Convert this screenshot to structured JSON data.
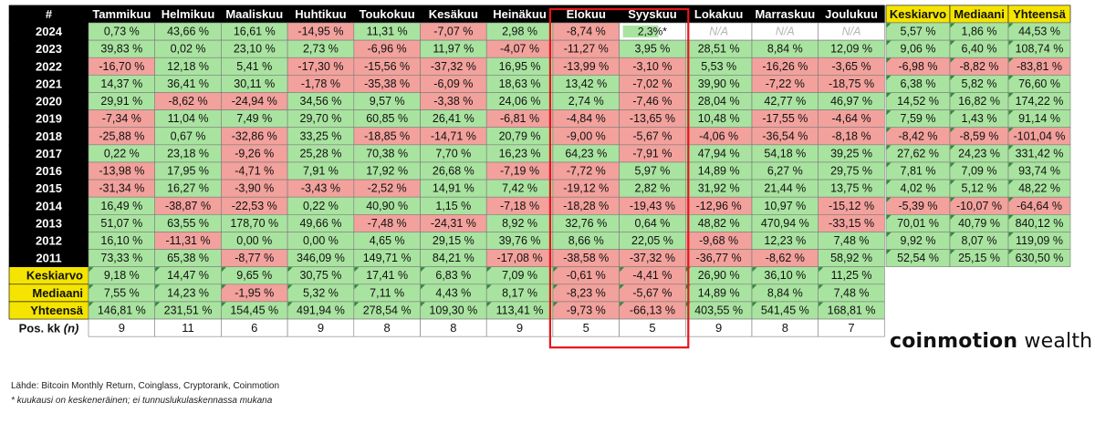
{
  "chart_data": {
    "type": "heatmap",
    "corner_label": "#",
    "months": [
      "Tammikuu",
      "Helmikuu",
      "Maaliskuu",
      "Huhtikuu",
      "Toukokuu",
      "Kesäkuu",
      "Heinäkuu",
      "Elokuu",
      "Syyskuu",
      "Lokakuu",
      "Marraskuu",
      "Joulukuu"
    ],
    "summary_columns": [
      "Keskiarvo",
      "Mediaani",
      "Yhteensä"
    ],
    "rows": [
      {
        "year": "2024",
        "values": [
          0.73,
          43.66,
          16.61,
          -14.95,
          11.31,
          -7.07,
          2.98,
          -8.74,
          2.3,
          null,
          null,
          null
        ],
        "labels": [
          "0,73 %",
          "43,66 %",
          "16,61 %",
          "-14,95 %",
          "11,31 %",
          "-7,07 %",
          "2,98 %",
          "-8,74 %",
          "2,3%*",
          "N/A",
          "N/A",
          "N/A"
        ],
        "summary": [
          5.57,
          1.86,
          44.53
        ],
        "summary_labels": [
          "5,57 %",
          "1,86 %",
          "44,53 %"
        ]
      },
      {
        "year": "2023",
        "values": [
          39.83,
          0.02,
          23.1,
          2.73,
          -6.96,
          11.97,
          -4.07,
          -11.27,
          3.95,
          28.51,
          8.84,
          12.09
        ],
        "labels": [
          "39,83 %",
          "0,02 %",
          "23,10 %",
          "2,73 %",
          "-6,96 %",
          "11,97 %",
          "-4,07 %",
          "-11,27 %",
          "3,95 %",
          "28,51 %",
          "8,84 %",
          "12,09 %"
        ],
        "summary": [
          9.06,
          6.4,
          108.74
        ],
        "summary_labels": [
          "9,06 %",
          "6,40 %",
          "108,74 %"
        ]
      },
      {
        "year": "2022",
        "values": [
          -16.7,
          12.18,
          5.41,
          -17.3,
          -15.56,
          -37.32,
          16.95,
          -13.99,
          -3.1,
          5.53,
          -16.26,
          -3.65
        ],
        "labels": [
          "-16,70 %",
          "12,18 %",
          "5,41 %",
          "-17,30 %",
          "-15,56 %",
          "-37,32 %",
          "16,95 %",
          "-13,99 %",
          "-3,10 %",
          "5,53 %",
          "-16,26 %",
          "-3,65 %"
        ],
        "summary": [
          -6.98,
          -8.82,
          -83.81
        ],
        "summary_labels": [
          "-6,98 %",
          "-8,82 %",
          "-83,81 %"
        ]
      },
      {
        "year": "2021",
        "values": [
          14.37,
          36.41,
          30.11,
          -1.78,
          -35.38,
          -6.09,
          18.63,
          13.42,
          -7.02,
          39.9,
          -7.22,
          -18.75
        ],
        "labels": [
          "14,37 %",
          "36,41 %",
          "30,11 %",
          "-1,78 %",
          "-35,38 %",
          "-6,09 %",
          "18,63 %",
          "13,42 %",
          "-7,02 %",
          "39,90 %",
          "-7,22 %",
          "-18,75 %"
        ],
        "summary": [
          6.38,
          5.82,
          76.6
        ],
        "summary_labels": [
          "6,38 %",
          "5,82 %",
          "76,60 %"
        ]
      },
      {
        "year": "2020",
        "values": [
          29.91,
          -8.62,
          -24.94,
          34.56,
          9.57,
          -3.38,
          24.06,
          2.74,
          -7.46,
          28.04,
          42.77,
          46.97
        ],
        "labels": [
          "29,91 %",
          "-8,62 %",
          "-24,94 %",
          "34,56 %",
          "9,57 %",
          "-3,38 %",
          "24,06 %",
          "2,74 %",
          "-7,46 %",
          "28,04 %",
          "42,77 %",
          "46,97 %"
        ],
        "summary": [
          14.52,
          16.82,
          174.22
        ],
        "summary_labels": [
          "14,52 %",
          "16,82 %",
          "174,22 %"
        ]
      },
      {
        "year": "2019",
        "values": [
          -7.34,
          11.04,
          7.49,
          29.7,
          60.85,
          26.41,
          -6.81,
          -4.84,
          -13.65,
          10.48,
          -17.55,
          -4.64
        ],
        "labels": [
          "-7,34 %",
          "11,04 %",
          "7,49 %",
          "29,70 %",
          "60,85 %",
          "26,41 %",
          "-6,81 %",
          "-4,84 %",
          "-13,65 %",
          "10,48 %",
          "-17,55 %",
          "-4,64 %"
        ],
        "summary": [
          7.59,
          1.43,
          91.14
        ],
        "summary_labels": [
          "7,59 %",
          "1,43 %",
          "91,14 %"
        ]
      },
      {
        "year": "2018",
        "values": [
          -25.88,
          0.67,
          -32.86,
          33.25,
          -18.85,
          -14.71,
          20.79,
          -9.0,
          -5.67,
          -4.06,
          -36.54,
          -8.18
        ],
        "labels": [
          "-25,88 %",
          "0,67 %",
          "-32,86 %",
          "33,25 %",
          "-18,85 %",
          "-14,71 %",
          "20,79 %",
          "-9,00 %",
          "-5,67 %",
          "-4,06 %",
          "-36,54 %",
          "-8,18 %"
        ],
        "summary": [
          -8.42,
          -8.59,
          -101.04
        ],
        "summary_labels": [
          "-8,42 %",
          "-8,59 %",
          "-101,04 %"
        ]
      },
      {
        "year": "2017",
        "values": [
          0.22,
          23.18,
          -9.26,
          25.28,
          70.38,
          7.7,
          16.23,
          64.23,
          -7.91,
          47.94,
          54.18,
          39.25
        ],
        "labels": [
          "0,22 %",
          "23,18 %",
          "-9,26 %",
          "25,28 %",
          "70,38 %",
          "7,70 %",
          "16,23 %",
          "64,23 %",
          "-7,91 %",
          "47,94 %",
          "54,18 %",
          "39,25 %"
        ],
        "summary": [
          27.62,
          24.23,
          331.42
        ],
        "summary_labels": [
          "27,62 %",
          "24,23 %",
          "331,42 %"
        ]
      },
      {
        "year": "2016",
        "values": [
          -13.98,
          17.95,
          -4.71,
          7.91,
          17.92,
          26.68,
          -7.19,
          -7.72,
          5.97,
          14.89,
          6.27,
          29.75
        ],
        "labels": [
          "-13,98 %",
          "17,95 %",
          "-4,71 %",
          "7,91 %",
          "17,92 %",
          "26,68 %",
          "-7,19 %",
          "-7,72 %",
          "5,97 %",
          "14,89 %",
          "6,27 %",
          "29,75 %"
        ],
        "summary": [
          7.81,
          7.09,
          93.74
        ],
        "summary_labels": [
          "7,81 %",
          "7,09 %",
          "93,74 %"
        ]
      },
      {
        "year": "2015",
        "values": [
          -31.34,
          16.27,
          -3.9,
          -3.43,
          -2.52,
          14.91,
          7.42,
          -19.12,
          2.82,
          31.92,
          21.44,
          13.75
        ],
        "labels": [
          "-31,34 %",
          "16,27 %",
          "-3,90 %",
          "-3,43 %",
          "-2,52 %",
          "14,91 %",
          "7,42 %",
          "-19,12 %",
          "2,82 %",
          "31,92 %",
          "21,44 %",
          "13,75 %"
        ],
        "summary": [
          4.02,
          5.12,
          48.22
        ],
        "summary_labels": [
          "4,02 %",
          "5,12 %",
          "48,22 %"
        ]
      },
      {
        "year": "2014",
        "values": [
          16.49,
          -38.87,
          -22.53,
          0.22,
          40.9,
          1.15,
          -7.18,
          -18.28,
          -19.43,
          -12.96,
          10.97,
          -15.12
        ],
        "labels": [
          "16,49 %",
          "-38,87 %",
          "-22,53 %",
          "0,22 %",
          "40,90 %",
          "1,15 %",
          "-7,18 %",
          "-18,28 %",
          "-19,43 %",
          "-12,96 %",
          "10,97 %",
          "-15,12 %"
        ],
        "summary": [
          -5.39,
          -10.07,
          -64.64
        ],
        "summary_labels": [
          "-5,39 %",
          "-10,07 %",
          "-64,64 %"
        ]
      },
      {
        "year": "2013",
        "values": [
          51.07,
          63.55,
          178.7,
          49.66,
          -7.48,
          -24.31,
          8.92,
          32.76,
          0.64,
          48.82,
          470.94,
          -33.15
        ],
        "labels": [
          "51,07 %",
          "63,55 %",
          "178,70 %",
          "49,66 %",
          "-7,48 %",
          "-24,31 %",
          "8,92 %",
          "32,76 %",
          "0,64 %",
          "48,82 %",
          "470,94 %",
          "-33,15 %"
        ],
        "summary": [
          70.01,
          40.79,
          840.12
        ],
        "summary_labels": [
          "70,01 %",
          "40,79 %",
          "840,12 %"
        ]
      },
      {
        "year": "2012",
        "values": [
          16.1,
          -11.31,
          0.0,
          0.0,
          4.65,
          29.15,
          39.76,
          8.66,
          22.05,
          -9.68,
          12.23,
          7.48
        ],
        "labels": [
          "16,10 %",
          "-11,31 %",
          "0,00 %",
          "0,00 %",
          "4,65 %",
          "29,15 %",
          "39,76 %",
          "8,66 %",
          "22,05 %",
          "-9,68 %",
          "12,23 %",
          "7,48 %"
        ],
        "summary": [
          9.92,
          8.07,
          119.09
        ],
        "summary_labels": [
          "9,92 %",
          "8,07 %",
          "119,09 %"
        ]
      },
      {
        "year": "2011",
        "values": [
          73.33,
          65.38,
          -8.77,
          346.09,
          149.71,
          84.21,
          -17.08,
          -38.58,
          -37.32,
          -36.77,
          -8.62,
          58.92
        ],
        "labels": [
          "73,33 %",
          "65,38 %",
          "-8,77 %",
          "346,09 %",
          "149,71 %",
          "84,21 %",
          "-17,08 %",
          "-38,58 %",
          "-37,32 %",
          "-36,77 %",
          "-8,62 %",
          "58,92 %"
        ],
        "summary": [
          52.54,
          25.15,
          630.5
        ],
        "summary_labels": [
          "52,54 %",
          "25,15 %",
          "630,50 %"
        ]
      }
    ],
    "stat_rows": [
      {
        "label": "Keskiarvo",
        "values": [
          9.18,
          14.47,
          9.65,
          30.75,
          17.41,
          6.83,
          7.09,
          -0.61,
          -4.41,
          26.9,
          36.1,
          11.25
        ],
        "labels": [
          "9,18 %",
          "14,47 %",
          "9,65 %",
          "30,75 %",
          "17,41 %",
          "6,83 %",
          "7,09 %",
          "-0,61 %",
          "-4,41 %",
          "26,90 %",
          "36,10 %",
          "11,25 %"
        ]
      },
      {
        "label": "Mediaani",
        "values": [
          7.55,
          14.23,
          -1.95,
          5.32,
          7.11,
          4.43,
          8.17,
          -8.23,
          -5.67,
          14.89,
          8.84,
          7.48
        ],
        "labels": [
          "7,55 %",
          "14,23 %",
          "-1,95 %",
          "5,32 %",
          "7,11 %",
          "4,43 %",
          "8,17 %",
          "-8,23 %",
          "-5,67 %",
          "14,89 %",
          "8,84 %",
          "7,48 %"
        ]
      },
      {
        "label": "Yhteensä",
        "values": [
          146.81,
          231.51,
          154.45,
          491.94,
          278.54,
          109.3,
          113.41,
          -9.73,
          -66.13,
          403.55,
          541.45,
          168.81
        ],
        "labels": [
          "146,81 %",
          "231,51 %",
          "154,45 %",
          "491,94 %",
          "278,54 %",
          "109,30 %",
          "113,41 %",
          "-9,73 %",
          "-66,13 %",
          "403,55 %",
          "541,45 %",
          "168,81 %"
        ]
      }
    ],
    "positive_months": {
      "label": "Pos. kk",
      "label_suffix": "(n)",
      "values": [
        9,
        11,
        6,
        9,
        8,
        8,
        9,
        5,
        5,
        9,
        8,
        7
      ]
    },
    "highlighted_months": [
      "Elokuu",
      "Syyskuu"
    ],
    "partial_cell_fill": 0.6,
    "colors": {
      "positive": "#a9e3a0",
      "negative": "#f2a19c",
      "header_bg": "#000000",
      "header_text": "#ffffff",
      "summary_header_bg": "#f4e400",
      "stat_label_bg": "#f4e400",
      "na_bg": "#ffffff",
      "na_text": "#b5b5b5",
      "grid": "#7a7a7a",
      "highlight": "#e8141a",
      "partial_fill": "#a9e3a0"
    }
  },
  "footer": {
    "sources": "Lähde: Bitcoin Monthly Return, Coinglass, Cryptorank, Coinmotion",
    "note": "* kuukausi on keskeneräinen; ei tunnuslukulaskennassa mukana"
  },
  "brand": {
    "name_bold": "coinmotion",
    "name_light": " wealth"
  }
}
